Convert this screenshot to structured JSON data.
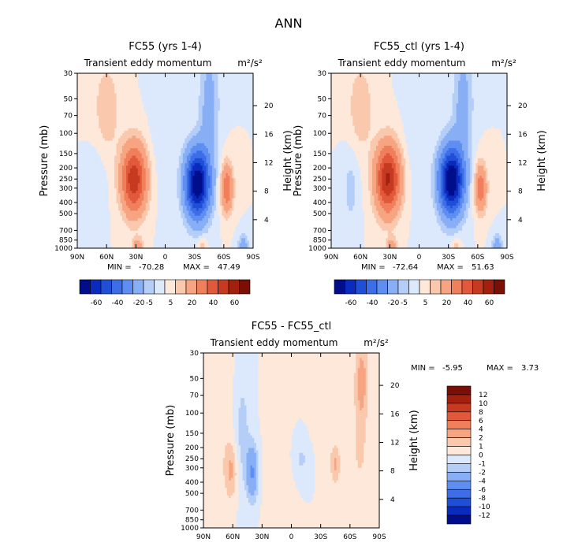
{
  "figure_title": "ANN",
  "colors": {
    "neg": [
      "#000e8c",
      "#0a2bbd",
      "#1f4fd6",
      "#3d6ee8",
      "#5f8ef2",
      "#88aff5",
      "#b5cef8",
      "#dce8fb"
    ],
    "pos": [
      "#fde8da",
      "#fac9ad",
      "#f6a482",
      "#f07f5c",
      "#e2583b",
      "#c73a22",
      "#a3200f",
      "#7a0f05"
    ]
  },
  "chart_data": [
    {
      "type": "contour",
      "title": "FC55 (yrs 1-4)",
      "subtitle": "Transient eddy momentum",
      "units": "m²/s²",
      "ylabel": "Pressure (mb)",
      "ylabel_right": "Height (km)",
      "x_ticks": [
        "90N",
        "60N",
        "30N",
        "0",
        "30S",
        "60S",
        "90S"
      ],
      "y_ticks": [
        "30",
        "50",
        "70",
        "100",
        "150",
        "200",
        "250",
        "300",
        "400",
        "500",
        "700",
        "850",
        "1000"
      ],
      "height_ticks": [
        "20",
        "16",
        "12",
        "8",
        "4"
      ],
      "min_label": "MIN =",
      "min_value": "-70.28",
      "max_label": "MAX =",
      "max_value": "47.49",
      "colorbar_labels": [
        "-60",
        "-40",
        "-20",
        "-5",
        "5",
        "20",
        "40",
        "60"
      ],
      "features": [
        {
          "lat": 32,
          "p": 250,
          "amp": 47.5,
          "wlat": 9,
          "wlogp": 0.21
        },
        {
          "lat": -33,
          "p": 275,
          "amp": -70.3,
          "wlat": 9,
          "wlogp": 0.21
        },
        {
          "lat": -63,
          "p": 300,
          "amp": 28,
          "wlat": 4.5,
          "wlogp": 0.15
        },
        {
          "lat": 60,
          "p": 60,
          "amp": 9,
          "wlat": 9,
          "wlogp": 0.28
        },
        {
          "lat": -45,
          "p": 55,
          "amp": -14,
          "wlat": 7,
          "wlogp": 0.35
        },
        {
          "lat": 28,
          "p": 950,
          "amp": 14,
          "wlat": 4,
          "wlogp": 0.05
        },
        {
          "lat": -38,
          "p": 950,
          "amp": 9,
          "wlat": 3.5,
          "wlogp": 0.05
        },
        {
          "lat": -80,
          "p": 950,
          "amp": -14,
          "wlat": 4,
          "wlogp": 0.07
        },
        {
          "lat": 70,
          "p": 280,
          "amp": -4,
          "wlat": 7,
          "wlogp": 0.25
        },
        {
          "lat": 5,
          "p": 100,
          "amp": -3,
          "wlat": 8,
          "wlogp": 0.4
        }
      ]
    },
    {
      "type": "contour",
      "title": "FC55_ctl (yrs 1-4)",
      "subtitle": "Transient eddy momentum",
      "units": "m²/s²",
      "ylabel": "Pressure (mb)",
      "ylabel_right": "Height (km)",
      "x_ticks": [
        "90N",
        "60N",
        "30N",
        "0",
        "30S",
        "60S",
        "90S"
      ],
      "y_ticks": [
        "30",
        "50",
        "70",
        "100",
        "150",
        "200",
        "250",
        "300",
        "400",
        "500",
        "700",
        "850",
        "1000"
      ],
      "height_ticks": [
        "20",
        "16",
        "12",
        "8",
        "4"
      ],
      "min_label": "MIN =",
      "min_value": "-72.64",
      "max_label": "MAX =",
      "max_value": "51.63",
      "colorbar_labels": [
        "-60",
        "-40",
        "-20",
        "-5",
        "5",
        "20",
        "40",
        "60"
      ],
      "features": [
        {
          "lat": 32,
          "p": 250,
          "amp": 51.6,
          "wlat": 9,
          "wlogp": 0.21
        },
        {
          "lat": -33,
          "p": 260,
          "amp": -72.6,
          "wlat": 9,
          "wlogp": 0.21
        },
        {
          "lat": -63,
          "p": 300,
          "amp": 26,
          "wlat": 4.5,
          "wlogp": 0.15
        },
        {
          "lat": 60,
          "p": 60,
          "amp": 9,
          "wlat": 9,
          "wlogp": 0.28
        },
        {
          "lat": -45,
          "p": 55,
          "amp": -14,
          "wlat": 7,
          "wlogp": 0.35
        },
        {
          "lat": 28,
          "p": 950,
          "amp": 14,
          "wlat": 4,
          "wlogp": 0.05
        },
        {
          "lat": -38,
          "p": 950,
          "amp": 9,
          "wlat": 3.5,
          "wlogp": 0.05
        },
        {
          "lat": -80,
          "p": 950,
          "amp": -14,
          "wlat": 4,
          "wlogp": 0.07
        },
        {
          "lat": 70,
          "p": 300,
          "amp": -7,
          "wlat": 6,
          "wlogp": 0.25
        },
        {
          "lat": 5,
          "p": 100,
          "amp": -3,
          "wlat": 8,
          "wlogp": 0.4
        }
      ]
    },
    {
      "type": "contour",
      "title": "FC55 - FC55_ctl",
      "subtitle": "Transient eddy momentum",
      "units": "m²/s²",
      "ylabel": "Pressure (mb)",
      "ylabel_right": "Height (km)",
      "x_ticks": [
        "90N",
        "60N",
        "30N",
        "0",
        "30S",
        "60S",
        "90S"
      ],
      "y_ticks": [
        "30",
        "50",
        "70",
        "100",
        "150",
        "200",
        "250",
        "300",
        "400",
        "500",
        "700",
        "850",
        "1000"
      ],
      "height_ticks": [
        "20",
        "16",
        "12",
        "8",
        "4"
      ],
      "min_label": "MIN =",
      "min_value": "-5.95",
      "max_label": "MAX =",
      "max_value": "3.73",
      "colorbar_labels": [
        "12",
        "10",
        "8",
        "6",
        "4",
        "2",
        "1",
        "0",
        "-1",
        "-2",
        "-4",
        "-6",
        "-8",
        "-10",
        "-12"
      ],
      "features": [
        {
          "lat": 62,
          "p": 320,
          "amp": 2.2,
          "wlat": 5,
          "wlogp": 0.18
        },
        {
          "lat": 40,
          "p": 330,
          "amp": -4.2,
          "wlat": 4,
          "wlogp": 0.17
        },
        {
          "lat": 50,
          "p": 150,
          "amp": -1.5,
          "wlat": 5,
          "wlogp": 0.35
        },
        {
          "lat": -45,
          "p": 280,
          "amp": 2.2,
          "wlat": 3.5,
          "wlogp": 0.12
        },
        {
          "lat": -72,
          "p": 50,
          "amp": 2.5,
          "wlat": 5,
          "wlogp": 0.25
        },
        {
          "lat": -70,
          "p": 200,
          "amp": 1.2,
          "wlat": 6,
          "wlogp": 0.3
        },
        {
          "lat": -10,
          "p": 250,
          "amp": -1.2,
          "wlat": 8,
          "wlogp": 0.15
        },
        {
          "lat": 10,
          "p": 400,
          "amp": 0.8,
          "wlat": 10,
          "wlogp": 0.4
        },
        {
          "lat": 75,
          "p": 80,
          "amp": 0.9,
          "wlat": 8,
          "wlogp": 0.4
        },
        {
          "lat": -30,
          "p": 100,
          "amp": 0.9,
          "wlat": 8,
          "wlogp": 0.3
        }
      ]
    }
  ]
}
